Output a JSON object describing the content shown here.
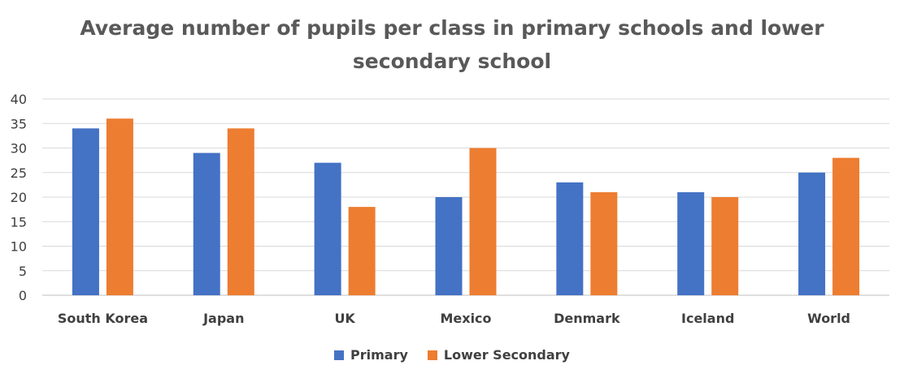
{
  "chart_data": {
    "type": "bar",
    "title": "Average number of pupils per class in primary schools and lower secondary school",
    "title_lines": [
      "Average number of pupils per class in primary schools and lower",
      "secondary school"
    ],
    "categories": [
      "South Korea",
      "Japan",
      "UK",
      "Mexico",
      "Denmark",
      "Iceland",
      "World"
    ],
    "series": [
      {
        "name": "Primary",
        "color": "#4472C4",
        "values": [
          34,
          29,
          27,
          20,
          23,
          21,
          25
        ]
      },
      {
        "name": "Lower Secondary",
        "color": "#ED7D31",
        "values": [
          36,
          34,
          18,
          30,
          21,
          20,
          28
        ]
      }
    ],
    "ylim": [
      0,
      40
    ],
    "yticks": [
      0,
      5,
      10,
      15,
      20,
      25,
      30,
      35,
      40
    ],
    "xlabel": "",
    "ylabel": "",
    "grid": true,
    "legend_position": "bottom"
  }
}
